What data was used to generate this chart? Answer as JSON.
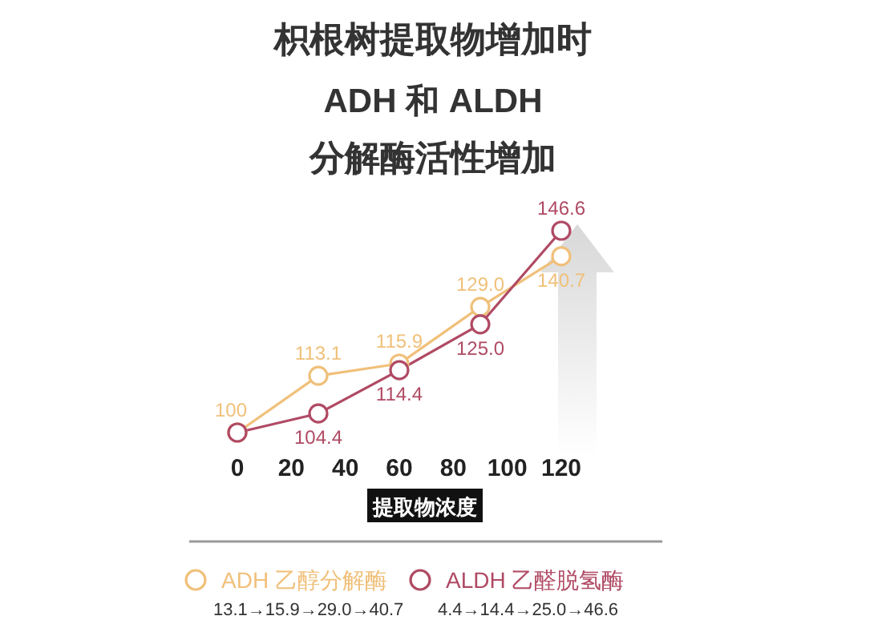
{
  "chart_data": {
    "type": "line",
    "title": "枳根树提取物增加时\nADH 和 ALDH\n分解酶活性增加",
    "xlabel": "提取物浓度",
    "x": [
      0,
      30,
      60,
      90,
      120
    ],
    "xlim": [
      0,
      120
    ],
    "xticks": [
      0,
      20,
      40,
      60,
      80,
      100,
      120
    ],
    "series": [
      {
        "name": "ADH 乙醇分解酶",
        "color": "#f0c07a",
        "values": [
          100,
          113.1,
          115.9,
          129.0,
          140.7
        ],
        "value_labels": [
          "100",
          "113.1",
          "115.9",
          "129.0",
          "140.7"
        ]
      },
      {
        "name": "ALDH 乙醛脱氢酶",
        "color": "#b04a64",
        "values": [
          100,
          104.4,
          114.4,
          125.0,
          146.6
        ],
        "value_labels": [
          null,
          "104.4",
          "114.4",
          "125.0",
          "146.6"
        ]
      }
    ],
    "marker": "circle",
    "legend": "bottom",
    "grid": false,
    "annotations": [
      "13.1→15.9→29.0→40.7",
      "4.4→14.4→25.0→46.6"
    ]
  }
}
